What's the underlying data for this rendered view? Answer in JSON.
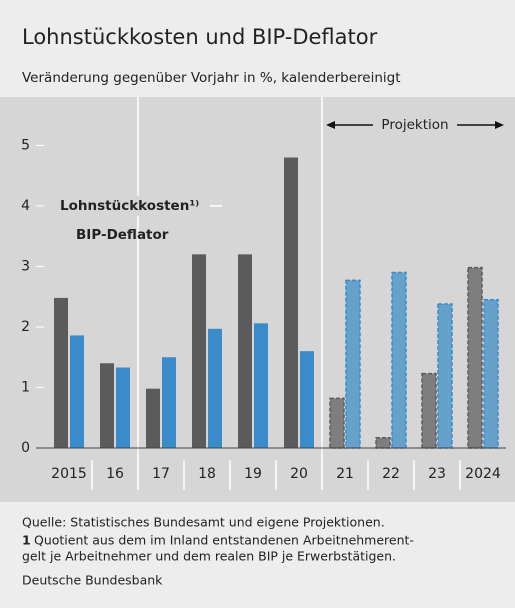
{
  "chart_data": {
    "type": "bar",
    "title": "Lohnstückkosten und BIP-Deflator",
    "subtitle": "Veränderung gegenüber Vorjahr in %, kalenderbereinigt",
    "categories": [
      "2015",
      "16",
      "17",
      "18",
      "19",
      "20",
      "21",
      "22",
      "23",
      "2024"
    ],
    "series": [
      {
        "name": "Lohnstückkosten¹⁾",
        "color": "#5b5b5b",
        "values": [
          2.48,
          1.4,
          0.98,
          3.2,
          3.2,
          4.8,
          0.82,
          0.17,
          1.23,
          2.98
        ]
      },
      {
        "name": "BIP-Deflator",
        "color": "#3a8cc8",
        "values": [
          1.86,
          1.33,
          1.5,
          1.97,
          2.06,
          1.6,
          2.77,
          2.9,
          2.38,
          2.45
        ]
      }
    ],
    "ylim": [
      0,
      5.8
    ],
    "yticks": [
      0,
      1,
      2,
      3,
      4,
      5
    ],
    "grid": false,
    "annotations": [
      {
        "text": "Projektion",
        "start": "21",
        "end": "2024"
      }
    ],
    "source": "Quelle: Statistisches Bundesamt und eigene Projektionen.",
    "footnote": {
      "marker": "1",
      "lines": [
        "Quotient aus dem im Inland entstandenen Arbeitnehmerent-",
        "gelt je Arbeitnehmer und dem realen BIP je Erwerbstätigen."
      ]
    },
    "publisher": "Deutsche Bundesbank"
  }
}
